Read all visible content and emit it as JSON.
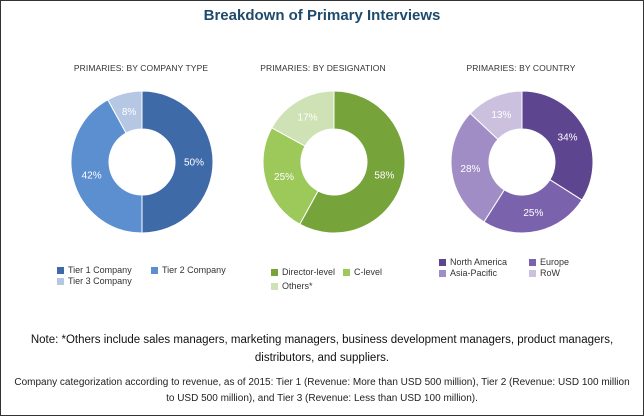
{
  "title": "Breakdown of Primary Interviews",
  "note": "Note: *Others include sales managers, marketing managers, business development managers, product managers, distributors, and suppliers.",
  "categorization": "Company categorization according to revenue, as of 2015: Tier 1 (Revenue: More than USD 500 million), Tier 2 (Revenue: USD 100 million to USD 500 million), and Tier 3 (Revenue: Less than USD 100 million).",
  "chart_data": [
    {
      "type": "pie",
      "subtitle": "PRIMARIES: BY COMPANY TYPE",
      "series": [
        {
          "name": "Tier 1 Company",
          "value": 50,
          "label": "50%",
          "color": "#3e6aa8"
        },
        {
          "name": "Tier 2 Company",
          "value": 42,
          "label": "42%",
          "color": "#5b8fd0"
        },
        {
          "name": "Tier 3 Company",
          "value": 8,
          "label": "8%",
          "color": "#b5c7e3"
        }
      ]
    },
    {
      "type": "pie",
      "subtitle": "PRIMARIES: BY DESIGNATION",
      "series": [
        {
          "name": "Director-level",
          "value": 58,
          "label": "58%",
          "color": "#76a33a"
        },
        {
          "name": "C-level",
          "value": 25,
          "label": "25%",
          "color": "#9cc95a"
        },
        {
          "name": "Others*",
          "value": 17,
          "label": "17%",
          "color": "#cfe2b6"
        }
      ]
    },
    {
      "type": "pie",
      "subtitle": "PRIMARIES: BY COUNTRY",
      "series": [
        {
          "name": "North America",
          "value": 34,
          "label": "34%",
          "color": "#5d4590"
        },
        {
          "name": "Europe",
          "value": 25,
          "label": "25%",
          "color": "#7b62ad"
        },
        {
          "name": "Asia-Pacific",
          "value": 28,
          "label": "28%",
          "color": "#a08dc6"
        },
        {
          "name": "RoW",
          "value": 13,
          "label": "13%",
          "color": "#cbc1df"
        }
      ]
    }
  ]
}
